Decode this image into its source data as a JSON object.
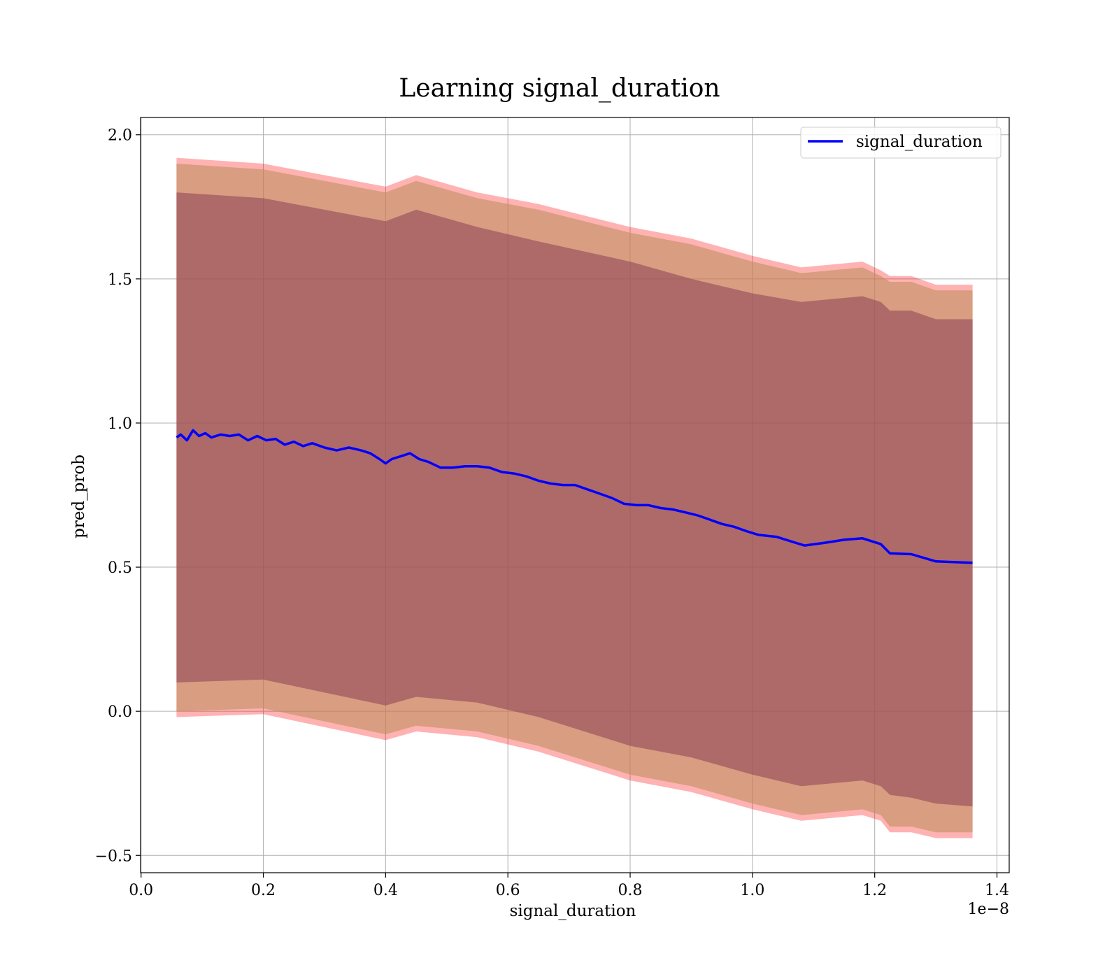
{
  "chart_data": {
    "type": "line",
    "title": "Learning signal_duration",
    "xlabel": "signal_duration",
    "ylabel": "pred_prob",
    "x_offset_label": "1e−8",
    "xlim": [
      -0.0008,
      1.42
    ],
    "ylim": [
      -0.56,
      2.06
    ],
    "x_ticks": [
      0.0,
      0.2,
      0.4,
      0.6,
      0.8,
      1.0,
      1.2,
      1.4
    ],
    "x_tick_labels": [
      "0.0",
      "0.2",
      "0.4",
      "0.6",
      "0.8",
      "1.0",
      "1.2",
      "1.4"
    ],
    "y_ticks": [
      -0.5,
      0.0,
      0.5,
      1.0,
      1.5,
      2.0
    ],
    "y_tick_labels": [
      "−0.5",
      "0.0",
      "0.5",
      "1.0",
      "1.5",
      "2.0"
    ],
    "grid": true,
    "legend_position": "top-right",
    "colors": {
      "line": "#0000ff",
      "outer_band": "#ff0000",
      "middle_band": "#bf8f60",
      "inner_band": "#8a4055",
      "grid": "#b0b0b0"
    },
    "series": [
      {
        "name": "signal_duration",
        "x": [
          0.058,
          0.065,
          0.075,
          0.085,
          0.095,
          0.105,
          0.115,
          0.13,
          0.145,
          0.16,
          0.175,
          0.19,
          0.205,
          0.22,
          0.235,
          0.25,
          0.265,
          0.28,
          0.3,
          0.32,
          0.34,
          0.36,
          0.375,
          0.39,
          0.4,
          0.41,
          0.425,
          0.44,
          0.455,
          0.47,
          0.49,
          0.51,
          0.53,
          0.55,
          0.57,
          0.59,
          0.61,
          0.63,
          0.65,
          0.67,
          0.69,
          0.71,
          0.73,
          0.75,
          0.77,
          0.79,
          0.81,
          0.83,
          0.85,
          0.87,
          0.89,
          0.91,
          0.93,
          0.95,
          0.97,
          0.99,
          1.01,
          1.04,
          1.085,
          1.12,
          1.15,
          1.18,
          1.21,
          1.225,
          1.26,
          1.3,
          1.36
        ],
        "y": [
          0.95,
          0.96,
          0.94,
          0.975,
          0.955,
          0.965,
          0.95,
          0.96,
          0.955,
          0.96,
          0.94,
          0.955,
          0.94,
          0.945,
          0.925,
          0.935,
          0.92,
          0.93,
          0.915,
          0.905,
          0.915,
          0.905,
          0.895,
          0.875,
          0.86,
          0.875,
          0.885,
          0.895,
          0.875,
          0.865,
          0.845,
          0.845,
          0.85,
          0.85,
          0.845,
          0.83,
          0.825,
          0.815,
          0.8,
          0.79,
          0.785,
          0.785,
          0.77,
          0.755,
          0.74,
          0.72,
          0.715,
          0.715,
          0.705,
          0.7,
          0.69,
          0.68,
          0.665,
          0.65,
          0.64,
          0.625,
          0.612,
          0.605,
          0.575,
          0.585,
          0.595,
          0.6,
          0.58,
          0.548,
          0.545,
          0.52,
          0.515
        ]
      }
    ],
    "bands": [
      {
        "x": [
          0.058,
          0.2,
          0.4,
          0.45,
          0.55,
          0.65,
          0.8,
          0.9,
          1.0,
          1.08,
          1.18,
          1.21,
          1.225,
          1.26,
          1.3,
          1.36
        ],
        "upper": [
          1.92,
          1.9,
          1.82,
          1.86,
          1.8,
          1.76,
          1.68,
          1.64,
          1.58,
          1.54,
          1.56,
          1.53,
          1.51,
          1.51,
          1.48,
          1.48
        ],
        "lower": [
          -0.02,
          -0.01,
          -0.1,
          -0.07,
          -0.09,
          -0.14,
          -0.24,
          -0.28,
          -0.34,
          -0.38,
          -0.36,
          -0.38,
          -0.42,
          -0.42,
          -0.44,
          -0.44
        ]
      },
      {
        "x": [
          0.058,
          0.2,
          0.4,
          0.45,
          0.55,
          0.65,
          0.8,
          0.9,
          1.0,
          1.08,
          1.18,
          1.21,
          1.225,
          1.26,
          1.3,
          1.36
        ],
        "upper": [
          1.9,
          1.88,
          1.8,
          1.84,
          1.78,
          1.74,
          1.66,
          1.62,
          1.56,
          1.52,
          1.54,
          1.51,
          1.49,
          1.49,
          1.46,
          1.46
        ],
        "lower": [
          0.0,
          0.01,
          -0.08,
          -0.05,
          -0.07,
          -0.12,
          -0.22,
          -0.26,
          -0.32,
          -0.36,
          -0.34,
          -0.36,
          -0.4,
          -0.4,
          -0.42,
          -0.42
        ]
      },
      {
        "x": [
          0.058,
          0.2,
          0.4,
          0.45,
          0.55,
          0.65,
          0.8,
          0.9,
          1.0,
          1.08,
          1.18,
          1.21,
          1.225,
          1.26,
          1.3,
          1.36
        ],
        "upper": [
          1.8,
          1.78,
          1.7,
          1.74,
          1.68,
          1.63,
          1.56,
          1.5,
          1.45,
          1.42,
          1.44,
          1.42,
          1.39,
          1.39,
          1.36,
          1.36
        ],
        "lower": [
          0.1,
          0.11,
          0.02,
          0.05,
          0.03,
          -0.02,
          -0.12,
          -0.16,
          -0.22,
          -0.26,
          -0.24,
          -0.26,
          -0.29,
          -0.3,
          -0.32,
          -0.33
        ]
      }
    ]
  }
}
